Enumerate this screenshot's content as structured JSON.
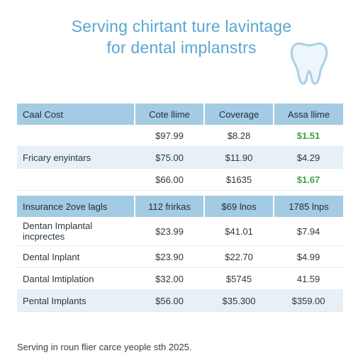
{
  "header": {
    "title_line1": "Serving chirtant ture lavintage",
    "title_line2": "for dental implanstrs"
  },
  "icons": {
    "tooth": "tooth-icon"
  },
  "colors": {
    "title": "#5aa6cf",
    "header_bg": "#a3cbe3",
    "shaded_row": "#e6f0f6",
    "highlight_green": "#3aa63e"
  },
  "table1": {
    "columns": [
      "Caal Cost",
      "Cote llime",
      "Coverage",
      "Assa llime"
    ],
    "rows": [
      {
        "label": "",
        "cells": [
          "$97.99",
          "$8.28",
          "$1.51"
        ],
        "highlight": true
      },
      {
        "label": "Fricary enyintars",
        "cells": [
          "$75.00",
          "$11.90",
          "$4.29"
        ],
        "highlight": false
      },
      {
        "label": "",
        "cells": [
          "$66.00",
          "$1635",
          "$1.67"
        ],
        "highlight": true
      }
    ]
  },
  "table2": {
    "columns": [
      "Insurance 2ove lagls",
      "112 frirkas",
      "$69 lnos",
      "1785 lnps"
    ],
    "rows": [
      {
        "label": "Dentan Implantal incprectes",
        "cells": [
          "$23.99",
          "$41.01",
          "$7.94"
        ]
      },
      {
        "label": "Dental Inplant",
        "cells": [
          "$23.90",
          "$22.70",
          "$4.99"
        ]
      },
      {
        "label": "Dantal Imtiplation",
        "cells": [
          "$32.00",
          "$5745",
          "41.59"
        ]
      },
      {
        "label": "Pental Implants",
        "cells": [
          "$56.00",
          "$35.300",
          "$359.00"
        ]
      }
    ]
  },
  "footer": {
    "text": "Serving in roun flier carce yeople sth 2025."
  }
}
